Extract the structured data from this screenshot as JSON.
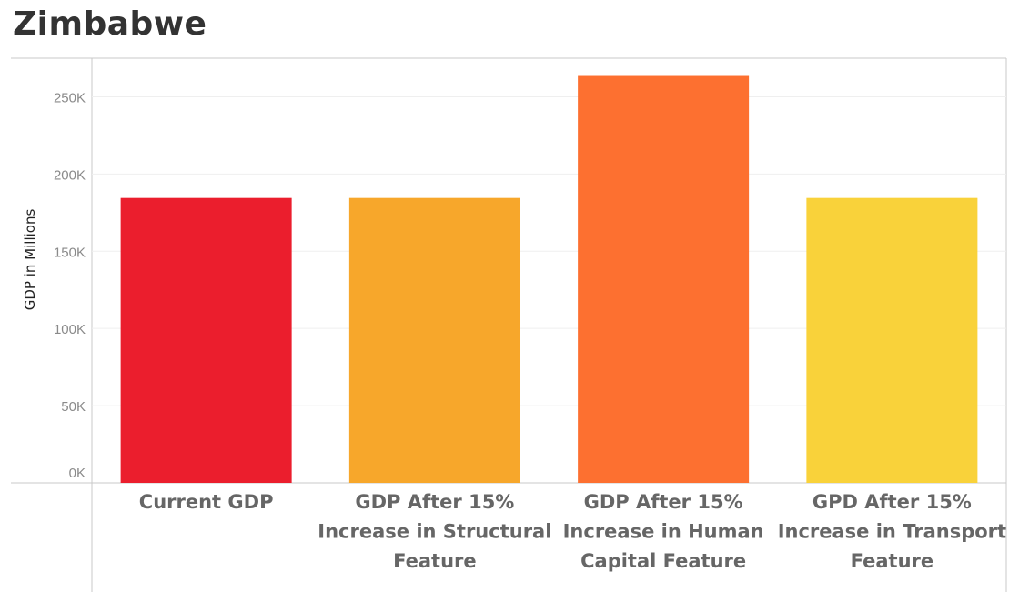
{
  "title": "Zimbabwe",
  "chart_data": {
    "type": "bar",
    "title": "Zimbabwe",
    "xlabel": "",
    "ylabel": "GDP in Millions",
    "ylim": [
      0,
      275000
    ],
    "yticks": [
      0,
      50000,
      100000,
      150000,
      200000,
      250000
    ],
    "ytick_labels": [
      "0K",
      "50K",
      "100K",
      "150K",
      "200K",
      "250K"
    ],
    "grid": true,
    "categories": [
      "Current GDP",
      "GDP After 15% Increase in Structural Feature",
      "GDP After 15% Increase in Human Capital Feature",
      "GPD After 15% Increase in Transport Feature"
    ],
    "category_lines": [
      [
        "Current GDP"
      ],
      [
        "GDP After 15%",
        "Increase in Structural",
        "Feature"
      ],
      [
        "GDP After 15%",
        "Increase in Human",
        "Capital Feature"
      ],
      [
        "GPD After 15%",
        "Increase in Transport",
        "Feature"
      ]
    ],
    "values": [
      184500,
      184500,
      263500,
      184500
    ],
    "colors": [
      "#eb1e2d",
      "#f7a72b",
      "#fd7030",
      "#f9d23a"
    ]
  }
}
